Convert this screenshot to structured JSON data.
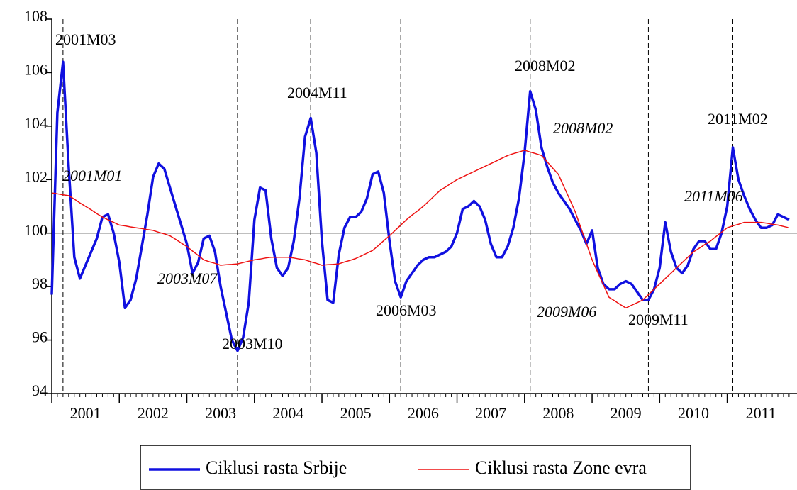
{
  "chart_data": {
    "type": "line",
    "x": [
      "2001M01",
      "2001M02",
      "2001M03",
      "2001M04",
      "2001M05",
      "2001M06",
      "2001M07",
      "2001M08",
      "2001M09",
      "2001M10",
      "2001M11",
      "2001M12",
      "2002M01",
      "2002M02",
      "2002M03",
      "2002M04",
      "2002M05",
      "2002M06",
      "2002M07",
      "2002M08",
      "2002M09",
      "2002M10",
      "2002M11",
      "2002M12",
      "2003M01",
      "2003M02",
      "2003M03",
      "2003M04",
      "2003M05",
      "2003M06",
      "2003M07",
      "2003M08",
      "2003M09",
      "2003M10",
      "2003M11",
      "2003M12",
      "2004M01",
      "2004M02",
      "2004M03",
      "2004M04",
      "2004M05",
      "2004M06",
      "2004M07",
      "2004M08",
      "2004M09",
      "2004M10",
      "2004M11",
      "2004M12",
      "2005M01",
      "2005M02",
      "2005M03",
      "2005M04",
      "2005M05",
      "2005M06",
      "2005M07",
      "2005M08",
      "2005M09",
      "2005M10",
      "2005M11",
      "2005M12",
      "2006M01",
      "2006M02",
      "2006M03",
      "2006M04",
      "2006M05",
      "2006M06",
      "2006M07",
      "2006M08",
      "2006M09",
      "2006M10",
      "2006M11",
      "2006M12",
      "2007M01",
      "2007M02",
      "2007M03",
      "2007M04",
      "2007M05",
      "2007M06",
      "2007M07",
      "2007M08",
      "2007M09",
      "2007M10",
      "2007M11",
      "2007M12",
      "2008M01",
      "2008M02",
      "2008M03",
      "2008M04",
      "2008M05",
      "2008M06",
      "2008M07",
      "2008M08",
      "2008M09",
      "2008M10",
      "2008M11",
      "2008M12",
      "2009M01",
      "2009M02",
      "2009M03",
      "2009M04",
      "2009M05",
      "2009M06",
      "2009M07",
      "2009M08",
      "2009M09",
      "2009M10",
      "2009M11",
      "2009M12",
      "2010M01",
      "2010M02",
      "2010M03",
      "2010M04",
      "2010M05",
      "2010M06",
      "2010M07",
      "2010M08",
      "2010M09",
      "2010M10",
      "2010M11",
      "2010M12",
      "2011M01",
      "2011M02",
      "2011M03",
      "2011M04",
      "2011M05",
      "2011M06",
      "2011M07",
      "2011M08",
      "2011M09",
      "2011M10",
      "2011M11",
      "2011M12"
    ],
    "series": [
      {
        "name": "Ciklusi rasta Srbije",
        "color": "#1010e0",
        "width": 3.5,
        "values": [
          97.7,
          104.5,
          106.4,
          102.5,
          99.1,
          98.3,
          98.8,
          99.3,
          99.8,
          100.6,
          100.7,
          100.0,
          98.9,
          97.2,
          97.5,
          98.3,
          99.5,
          100.7,
          102.1,
          102.6,
          102.4,
          101.7,
          101.0,
          100.3,
          99.6,
          98.5,
          98.9,
          99.8,
          99.9,
          99.3,
          98.0,
          97.0,
          96.0,
          95.6,
          96.1,
          97.4,
          100.5,
          101.7,
          101.6,
          99.8,
          98.7,
          98.4,
          98.7,
          99.7,
          101.3,
          103.6,
          104.3,
          103.0,
          99.7,
          97.5,
          97.4,
          99.2,
          100.2,
          100.6,
          100.6,
          100.8,
          101.3,
          102.2,
          102.3,
          101.5,
          99.7,
          98.2,
          97.6,
          98.2,
          98.5,
          98.8,
          99.0,
          99.1,
          99.1,
          99.2,
          99.3,
          99.5,
          100.0,
          100.9,
          101.0,
          101.2,
          101.0,
          100.5,
          99.6,
          99.1,
          99.1,
          99.5,
          100.2,
          101.3,
          103.0,
          105.3,
          104.6,
          103.2,
          102.5,
          101.9,
          101.5,
          101.2,
          100.9,
          100.5,
          100.1,
          99.6,
          100.1,
          98.7,
          98.1,
          97.9,
          97.9,
          98.1,
          98.2,
          98.1,
          97.8,
          97.5,
          97.5,
          97.9,
          98.7,
          100.4,
          99.3,
          98.7,
          98.5,
          98.8,
          99.4,
          99.7,
          99.7,
          99.4,
          99.4,
          100.0,
          101.0,
          103.2,
          102.0,
          101.4,
          100.9,
          100.5,
          100.2,
          100.2,
          100.3,
          100.7,
          100.6,
          100.5
        ]
      },
      {
        "name": "Ciklusi rasta Zone evra",
        "color": "#ee1111",
        "width": 1.5,
        "values": [
          101.5,
          101.47,
          101.43,
          101.4,
          101.27,
          101.13,
          101.0,
          100.87,
          100.73,
          100.6,
          100.5,
          100.4,
          100.3,
          100.27,
          100.23,
          100.2,
          100.17,
          100.13,
          100.1,
          100.03,
          99.97,
          99.9,
          99.77,
          99.63,
          99.5,
          99.33,
          99.17,
          99.0,
          98.93,
          98.87,
          98.8,
          98.82,
          98.83,
          98.85,
          98.9,
          98.95,
          99.0,
          99.03,
          99.07,
          99.1,
          99.1,
          99.1,
          99.1,
          99.07,
          99.03,
          99.0,
          98.93,
          98.87,
          98.8,
          98.82,
          98.83,
          98.85,
          98.92,
          98.98,
          99.05,
          99.15,
          99.25,
          99.35,
          99.53,
          99.72,
          99.9,
          100.1,
          100.3,
          100.5,
          100.67,
          100.83,
          101.0,
          101.2,
          101.4,
          101.6,
          101.73,
          101.87,
          102.0,
          102.1,
          102.2,
          102.3,
          102.4,
          102.5,
          102.6,
          102.7,
          102.8,
          102.9,
          102.97,
          103.03,
          103.1,
          103.03,
          102.97,
          102.9,
          102.67,
          102.43,
          102.2,
          101.73,
          101.27,
          100.8,
          100.2,
          99.6,
          99.0,
          98.53,
          98.07,
          97.6,
          97.47,
          97.33,
          97.2,
          97.3,
          97.4,
          97.5,
          97.7,
          97.9,
          98.1,
          98.3,
          98.5,
          98.7,
          98.9,
          99.1,
          99.3,
          99.43,
          99.57,
          99.7,
          99.87,
          100.03,
          100.2,
          100.27,
          100.33,
          100.4,
          100.4,
          100.4,
          100.4,
          100.37,
          100.33,
          100.3,
          100.25,
          100.2
        ]
      }
    ],
    "ylim": [
      94,
      108
    ],
    "yticks": [
      94,
      96,
      98,
      100,
      102,
      104,
      106,
      108
    ],
    "xticks": [
      {
        "value": "2001M01",
        "label": "2001"
      },
      {
        "value": "2002M01",
        "label": "2002"
      },
      {
        "value": "2003M01",
        "label": "2003"
      },
      {
        "value": "2004M01",
        "label": "2004"
      },
      {
        "value": "2005M01",
        "label": "2005"
      },
      {
        "value": "2006M01",
        "label": "2006"
      },
      {
        "value": "2007M01",
        "label": "2007"
      },
      {
        "value": "2008M01",
        "label": "2008"
      },
      {
        "value": "2009M01",
        "label": "2009"
      },
      {
        "value": "2010M01",
        "label": "2010"
      },
      {
        "value": "2011M01",
        "label": "2011"
      }
    ],
    "reference_line": 100,
    "vlines": [
      "2001M03",
      "2003M10",
      "2004M11",
      "2006M03",
      "2008M02",
      "2009M11",
      "2011M02"
    ],
    "annotations": [
      "2001M03",
      "2001M01",
      "2003M07",
      "2003M10",
      "2004M11",
      "2006M03",
      "2008M02",
      "2008M02",
      "2009M06",
      "2009M11",
      "2011M02",
      "2011M06"
    ],
    "legend": "bottom",
    "grid": false
  }
}
